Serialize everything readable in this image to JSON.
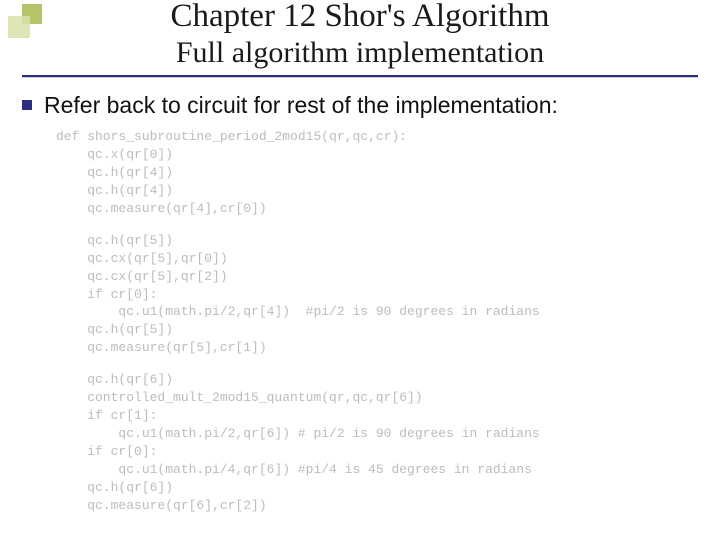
{
  "decor": {
    "sq1_color": "#b6c46a",
    "sq2_color": "#d9e2a8"
  },
  "title": "Chapter 12 Shor's Algorithm",
  "subtitle": "Full algorithm implementation",
  "rule_color": "#2a2f80",
  "bullet": {
    "square_color": "#2a2f80",
    "text": "Refer back to circuit for rest of the implementation:"
  },
  "code": {
    "text_color": "#bcbcbc",
    "font": "Courier New",
    "lines": [
      "def shors_subroutine_period_2mod15(qr,qc,cr):",
      "    qc.x(qr[0])",
      "    qc.h(qr[4])",
      "    qc.h(qr[4])",
      "    qc.measure(qr[4],cr[0])",
      "",
      "    qc.h(qr[5])",
      "    qc.cx(qr[5],qr[0])",
      "    qc.cx(qr[5],qr[2])",
      "    if cr[0]:",
      "        qc.u1(math.pi/2,qr[4])  #pi/2 is 90 degrees in radians",
      "    qc.h(qr[5])",
      "    qc.measure(qr[5],cr[1])",
      "",
      "    qc.h(qr[6])",
      "    controlled_mult_2mod15_quantum(qr,qc,qr[6])",
      "    if cr[1]:",
      "        qc.u1(math.pi/2,qr[6]) # pi/2 is 90 degrees in radians",
      "    if cr[0]:",
      "        qc.u1(math.pi/4,qr[6]) #pi/4 is 45 degrees in radians",
      "    qc.h(qr[6])",
      "    qc.measure(qr[6],cr[2])"
    ]
  }
}
